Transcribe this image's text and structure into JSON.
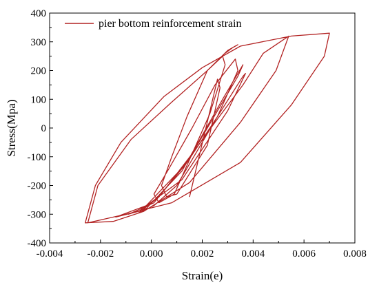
{
  "chart_data": {
    "type": "line",
    "xlabel": "Strain(e)",
    "ylabel": "Stress(Mpa)",
    "xlim": [
      -0.004,
      0.008
    ],
    "ylim": [
      -400,
      400
    ],
    "x_ticks": [
      -0.004,
      -0.002,
      0.0,
      0.002,
      0.004,
      0.006,
      0.008
    ],
    "x_tick_labels": [
      "-0.004",
      "-0.002",
      "0.000",
      "0.002",
      "0.004",
      "0.006",
      "0.008"
    ],
    "y_ticks": [
      -400,
      -300,
      -200,
      -100,
      0,
      100,
      200,
      300,
      400
    ],
    "y_tick_labels": [
      "-400",
      "-300",
      "-200",
      "-100",
      "0",
      "100",
      "200",
      "300",
      "400"
    ],
    "grid": false,
    "legend_position": "top-left",
    "series": [
      {
        "name": "pier bottom reinforcement strain",
        "color": "#b22222",
        "x": [
          0.0015,
          0.0026,
          0.0027,
          0.0022,
          0.001,
          0.0006,
          0.0004,
          0.0008,
          0.0014,
          0.0022,
          0.0028,
          0.0029,
          0.0023,
          0.0009,
          0.0003,
          0.0001,
          0.0007,
          0.0016,
          0.0025,
          0.0033,
          0.0034,
          0.0026,
          0.001,
          0.0001,
          -0.0005,
          0.0003,
          0.0016,
          0.0026,
          0.0034,
          0.0036,
          0.0028,
          0.0012,
          -0.0002,
          -0.0009,
          0.0001,
          0.0014,
          0.0026,
          0.0036,
          0.0037,
          0.003,
          0.0012,
          -0.0005,
          -0.0014,
          -0.0002,
          0.0012,
          0.0025,
          0.0036,
          0.0044,
          0.0054,
          0.0049,
          0.0035,
          0.0015,
          -0.0003,
          -0.0015,
          -0.0026,
          -0.0022,
          -0.0012,
          0.0005,
          0.002,
          0.0035,
          0.0055,
          0.007,
          0.0068,
          0.0055,
          0.0035,
          0.0008,
          -0.001,
          -0.0025,
          -0.0021,
          -0.0008,
          0.0008,
          0.0022,
          0.003,
          0.0033,
          0.0034,
          0.0032,
          0.0029
        ],
        "y": [
          -240,
          170,
          140,
          -60,
          -230,
          -240,
          -200,
          -100,
          40,
          200,
          250,
          220,
          50,
          -230,
          -260,
          -230,
          -140,
          0,
          150,
          240,
          200,
          40,
          -200,
          -270,
          -295,
          -240,
          -90,
          60,
          180,
          220,
          100,
          -150,
          -280,
          -300,
          -260,
          -120,
          40,
          180,
          190,
          60,
          -180,
          -290,
          -310,
          -270,
          -140,
          20,
          150,
          260,
          320,
          200,
          20,
          -190,
          -290,
          -325,
          -330,
          -200,
          -50,
          110,
          210,
          285,
          320,
          330,
          250,
          80,
          -120,
          -260,
          -300,
          -330,
          -200,
          -40,
          90,
          200,
          270,
          285,
          290,
          280,
          260
        ]
      }
    ]
  }
}
